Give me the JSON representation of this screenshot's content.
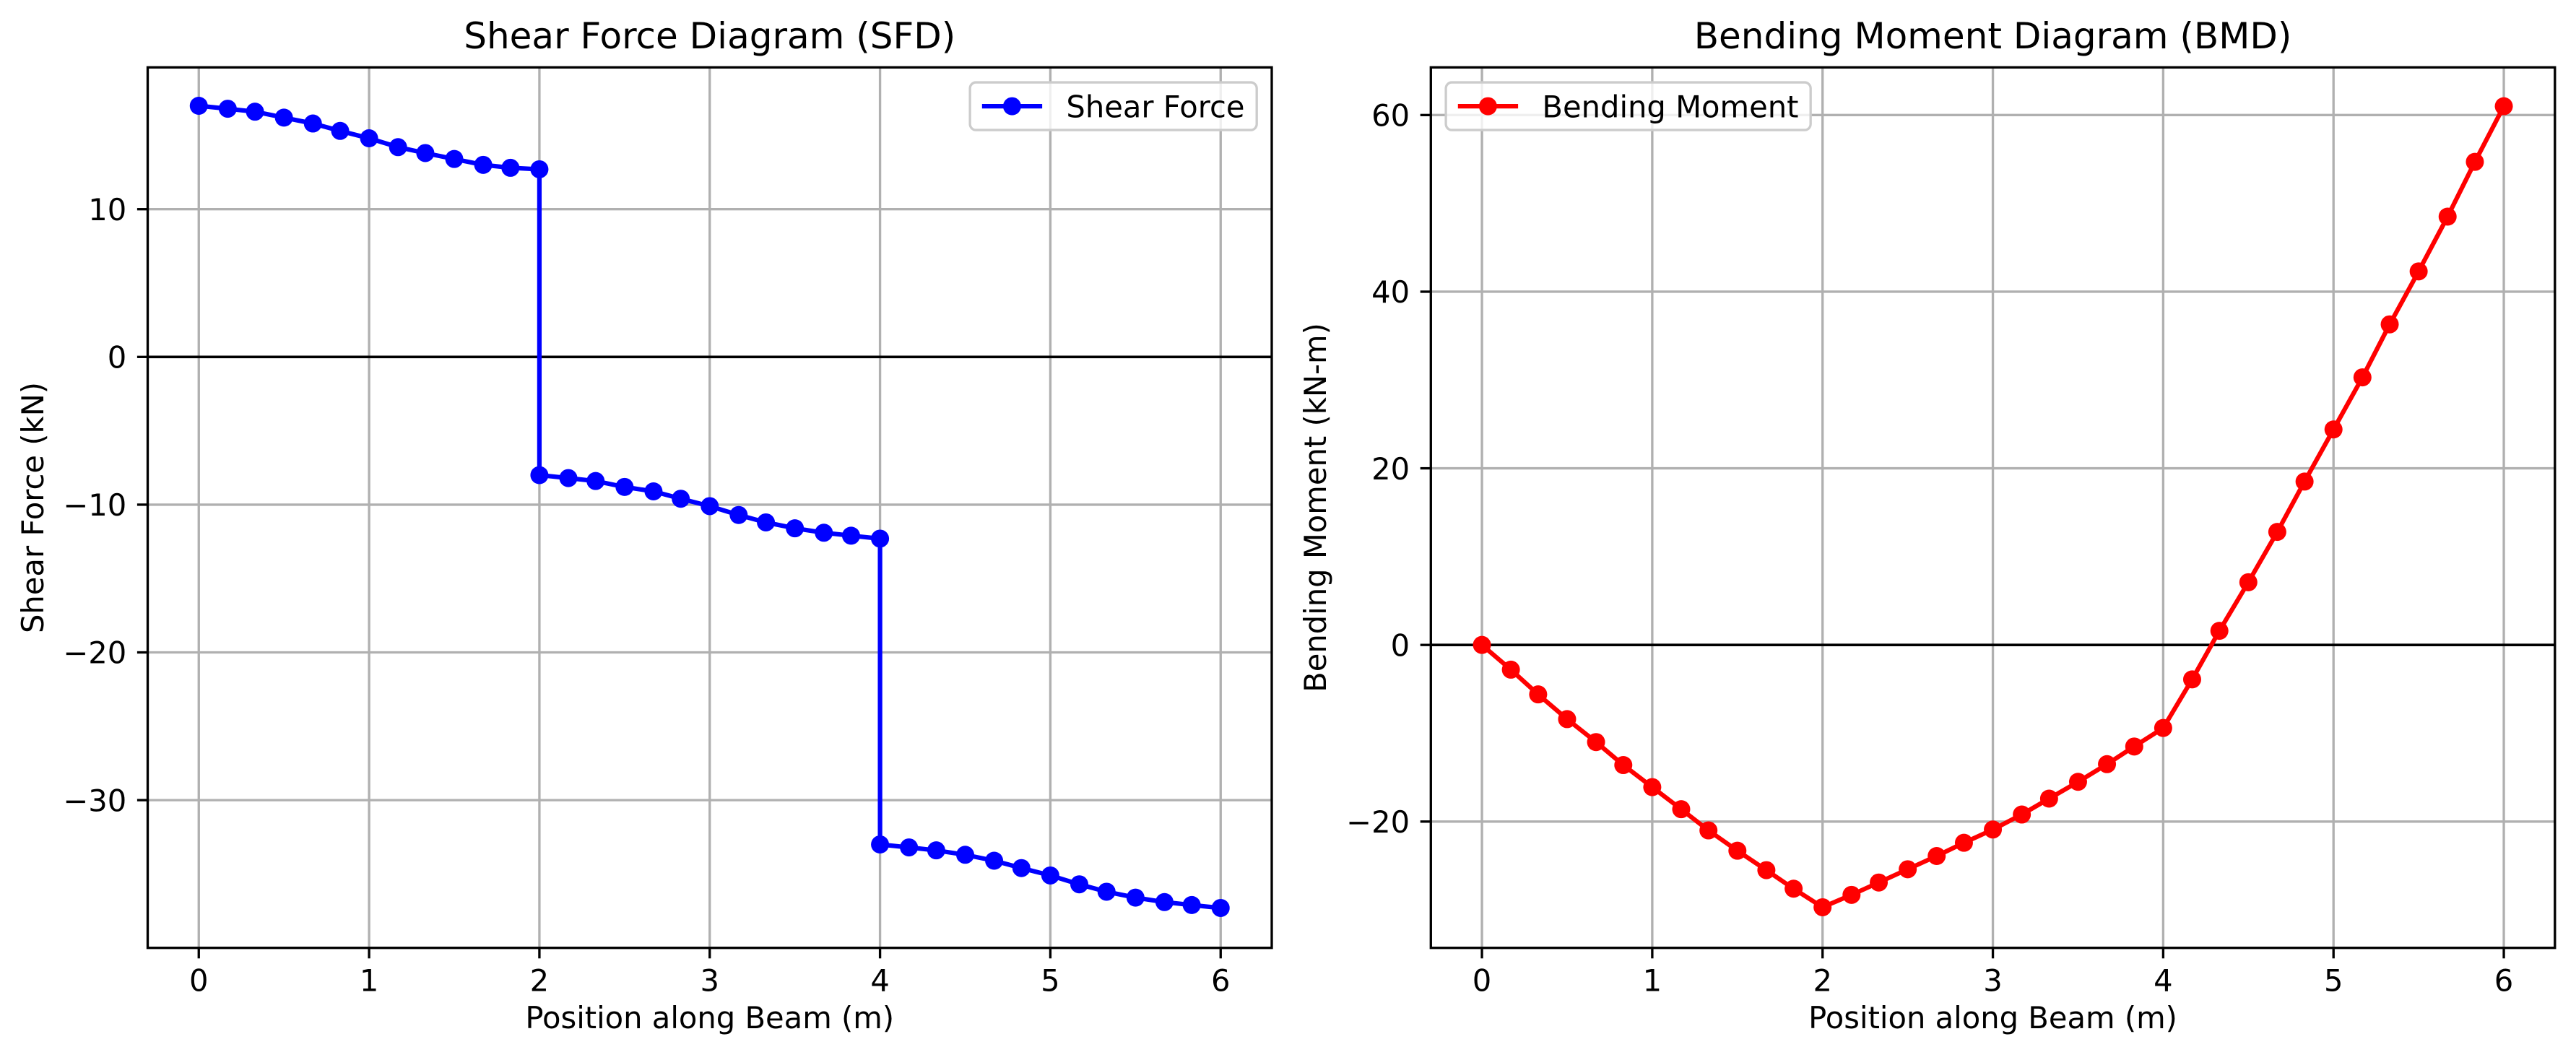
{
  "chart_data": [
    {
      "type": "line",
      "title": "Shear Force Diagram (SFD)",
      "xlabel": "Position along Beam (m)",
      "ylabel": "Shear Force (kN)",
      "xlim": [
        -0.3,
        6.3
      ],
      "ylim": [
        -40.0,
        19.6
      ],
      "xticks": [
        0,
        1,
        2,
        3,
        4,
        5,
        6
      ],
      "xtick_labels": [
        "0",
        "1",
        "2",
        "3",
        "4",
        "5",
        "6"
      ],
      "yticks": [
        -30,
        -20,
        -10,
        0,
        10
      ],
      "ytick_labels": [
        "−30",
        "−20",
        "−10",
        "0",
        "10"
      ],
      "grid": true,
      "legend": "upper right",
      "reference_lines": [
        {
          "y": 0,
          "color": "#000000"
        }
      ],
      "series": [
        {
          "name": "Shear Force",
          "color": "#0000ff",
          "x": [
            0,
            0.17,
            0.33,
            0.5,
            0.67,
            0.83,
            1,
            1.17,
            1.33,
            1.5,
            1.67,
            1.83,
            2,
            2,
            2.17,
            2.33,
            2.5,
            2.67,
            2.83,
            3,
            3.17,
            3.33,
            3.5,
            3.67,
            3.83,
            4,
            4,
            4.17,
            4.33,
            4.5,
            4.67,
            4.83,
            5,
            5.17,
            5.33,
            5.5,
            5.67,
            5.83,
            6
          ],
          "y": [
            17.0,
            16.8,
            16.6,
            16.2,
            15.8,
            15.3,
            14.8,
            14.2,
            13.8,
            13.4,
            13.0,
            12.8,
            12.7,
            -8.0,
            -8.2,
            -8.4,
            -8.8,
            -9.1,
            -9.6,
            -10.1,
            -10.7,
            -11.2,
            -11.6,
            -11.9,
            -12.1,
            -12.3,
            -33.0,
            -33.2,
            -33.4,
            -33.7,
            -34.1,
            -34.6,
            -35.1,
            -35.7,
            -36.2,
            -36.6,
            -36.9,
            -37.1,
            -37.3
          ]
        }
      ]
    },
    {
      "type": "line",
      "title": "Bending Moment Diagram (BMD)",
      "xlabel": "Position along Beam (m)",
      "ylabel": "Bending Moment (kN-m)",
      "xlim": [
        -0.3,
        6.3
      ],
      "ylim": [
        -34.3,
        65.4
      ],
      "xticks": [
        0,
        1,
        2,
        3,
        4,
        5,
        6
      ],
      "xtick_labels": [
        "0",
        "1",
        "2",
        "3",
        "4",
        "5",
        "6"
      ],
      "yticks": [
        -20,
        0,
        20,
        40,
        60
      ],
      "ytick_labels": [
        "−20",
        "0",
        "20",
        "40",
        "60"
      ],
      "grid": true,
      "legend": "upper left",
      "reference_lines": [
        {
          "y": 0,
          "color": "#000000"
        }
      ],
      "series": [
        {
          "name": "Bending Moment",
          "color": "#ff0000",
          "x": [
            0,
            0.17,
            0.33,
            0.5,
            0.67,
            0.83,
            1,
            1.17,
            1.33,
            1.5,
            1.67,
            1.83,
            2,
            2.17,
            2.33,
            2.5,
            2.67,
            2.83,
            3,
            3.17,
            3.33,
            3.5,
            3.67,
            3.83,
            4,
            4.17,
            4.33,
            4.5,
            4.67,
            4.83,
            5,
            5.17,
            5.33,
            5.5,
            5.67,
            5.83,
            6
          ],
          "y": [
            0.0,
            -2.8,
            -5.6,
            -8.4,
            -11.0,
            -13.6,
            -16.1,
            -18.6,
            -21.0,
            -23.3,
            -25.5,
            -27.6,
            -29.7,
            -28.3,
            -26.9,
            -25.4,
            -23.9,
            -22.4,
            -20.9,
            -19.2,
            -17.4,
            -15.5,
            -13.5,
            -11.5,
            -9.4,
            -3.9,
            1.6,
            7.1,
            12.8,
            18.5,
            24.4,
            30.3,
            36.3,
            42.3,
            48.5,
            54.7,
            61.0
          ]
        }
      ]
    }
  ]
}
